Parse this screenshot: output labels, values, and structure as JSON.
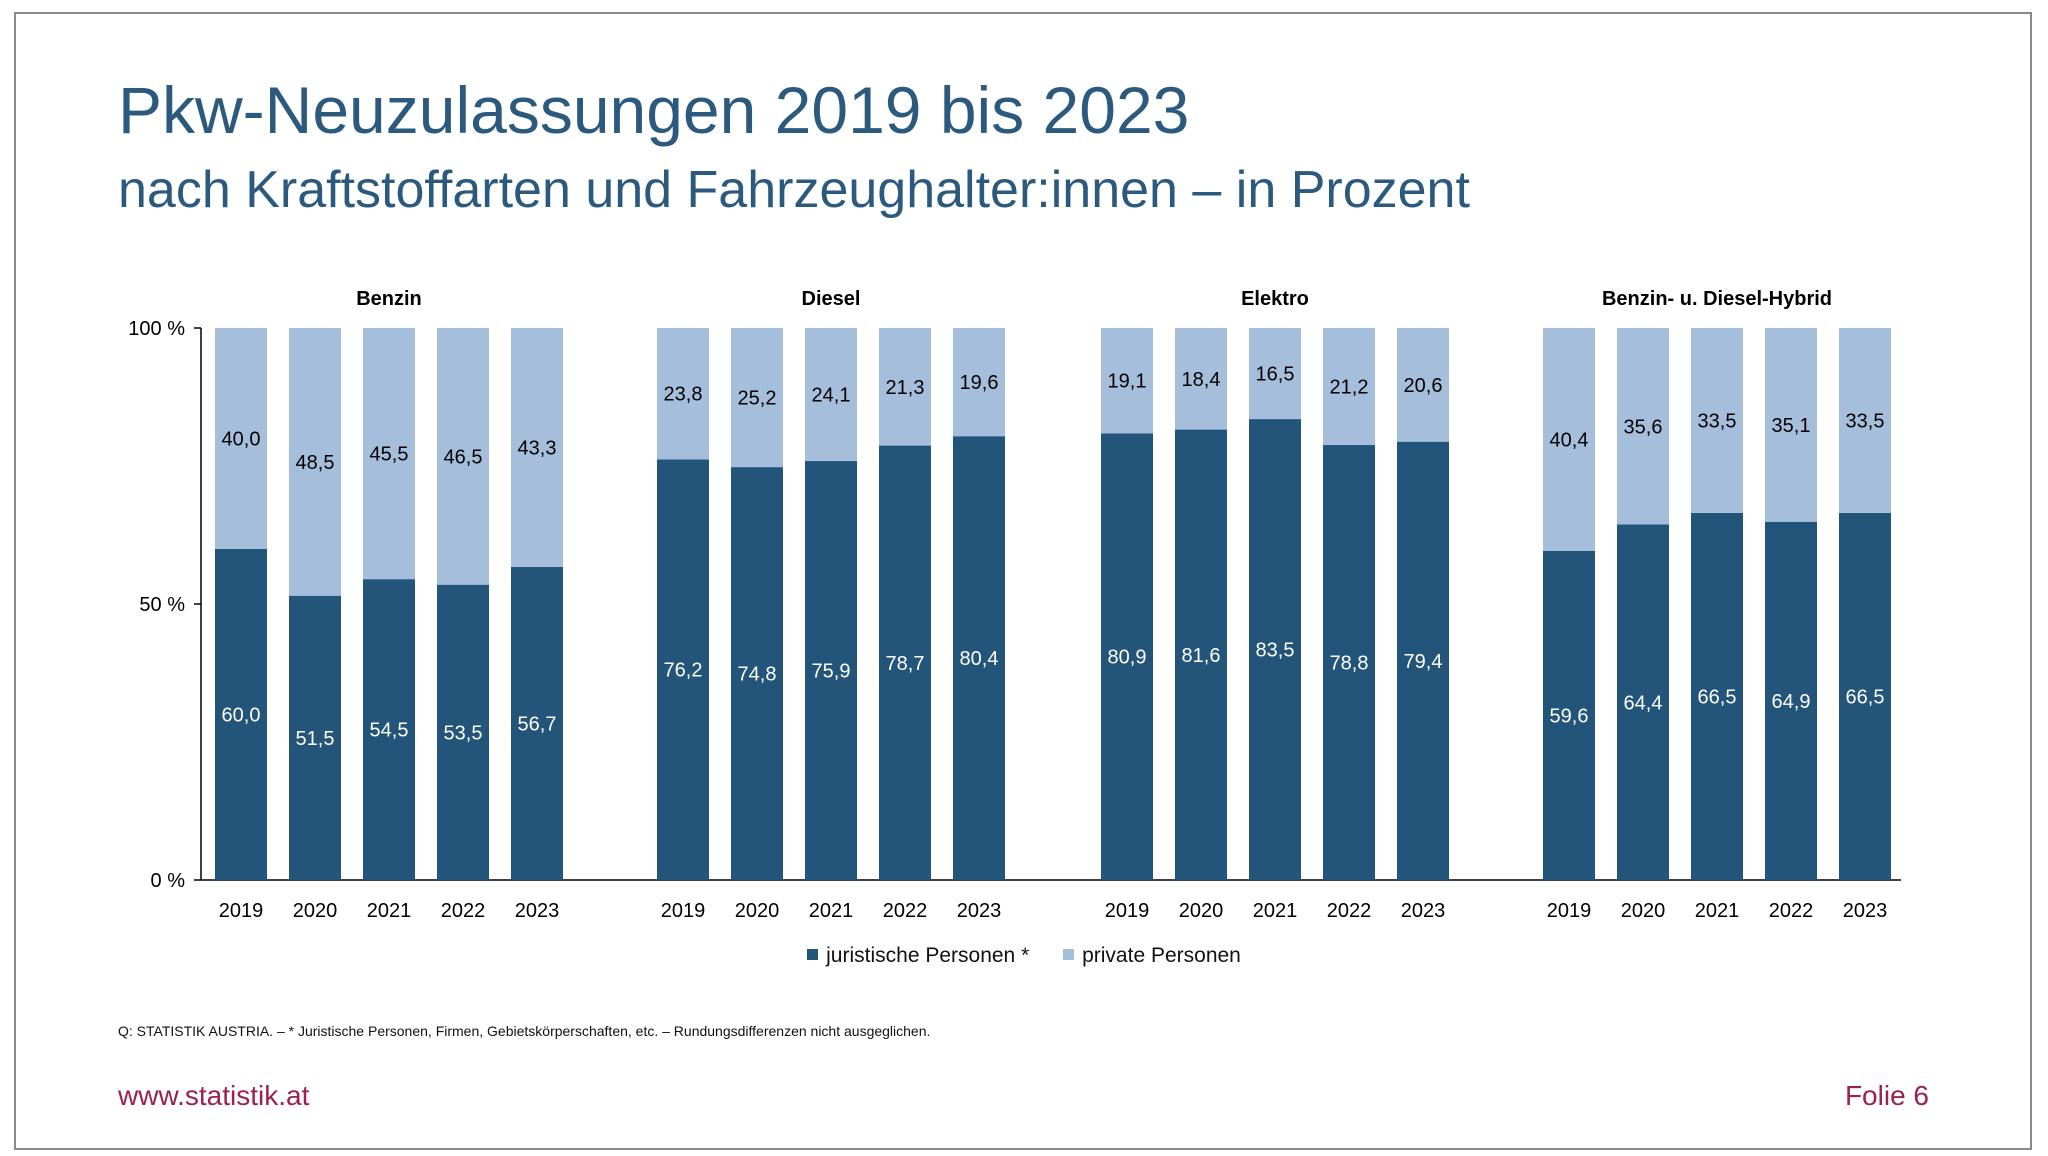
{
  "slide": {
    "title": "Pkw-Neuzulassungen 2019 bis 2023",
    "subtitle": "nach Kraftstoffarten und Fahrzeughalter:innen – in Prozent",
    "source": "Q: STATISTIK AUSTRIA. – * Juristische Personen, Firmen, Gebietskörperschaften, etc. – Rundungsdifferenzen nicht ausgeglichen.",
    "footer_url": "www.statistik.at",
    "footer_page": "Folie 6"
  },
  "colors": {
    "juristische": "#23547a",
    "private": "#a4bedc",
    "title": "#2b5a7e",
    "footer": "#9b2150"
  },
  "chart_data": {
    "type": "bar",
    "stacked": true,
    "ylim": [
      0,
      100
    ],
    "y_ticks": [
      "0 %",
      "50 %",
      "100 %"
    ],
    "y_tick_values": [
      0,
      50,
      100
    ],
    "categories": [
      "2019",
      "2020",
      "2021",
      "2022",
      "2023"
    ],
    "legend_position": "bottom",
    "series_names": [
      "juristische Personen *",
      "private Personen"
    ],
    "groups": [
      {
        "name": "Benzin",
        "juristische": [
          60.0,
          51.5,
          54.5,
          53.5,
          56.7
        ],
        "private": [
          40.0,
          48.5,
          45.5,
          46.5,
          43.3
        ],
        "juristische_labels": [
          "60,0",
          "51,5",
          "54,5",
          "53,5",
          "56,7"
        ],
        "private_labels": [
          "40,0",
          "48,5",
          "45,5",
          "46,5",
          "43,3"
        ]
      },
      {
        "name": "Diesel",
        "juristische": [
          76.2,
          74.8,
          75.9,
          78.7,
          80.4
        ],
        "private": [
          23.8,
          25.2,
          24.1,
          21.3,
          19.6
        ],
        "juristische_labels": [
          "76,2",
          "74,8",
          "75,9",
          "78,7",
          "80,4"
        ],
        "private_labels": [
          "23,8",
          "25,2",
          "24,1",
          "21,3",
          "19,6"
        ]
      },
      {
        "name": "Elektro",
        "juristische": [
          80.9,
          81.6,
          83.5,
          78.8,
          79.4
        ],
        "private": [
          19.1,
          18.4,
          16.5,
          21.2,
          20.6
        ],
        "juristische_labels": [
          "80,9",
          "81,6",
          "83,5",
          "78,8",
          "79,4"
        ],
        "private_labels": [
          "19,1",
          "18,4",
          "16,5",
          "21,2",
          "20,6"
        ]
      },
      {
        "name": "Benzin- u. Diesel-Hybrid",
        "juristische": [
          59.6,
          64.4,
          66.5,
          64.9,
          66.5
        ],
        "private": [
          40.4,
          35.6,
          33.5,
          35.1,
          33.5
        ],
        "juristische_labels": [
          "59,6",
          "64,4",
          "66,5",
          "64,9",
          "66,5"
        ],
        "private_labels": [
          "40,4",
          "35,6",
          "33,5",
          "35,1",
          "33,5"
        ]
      }
    ]
  }
}
